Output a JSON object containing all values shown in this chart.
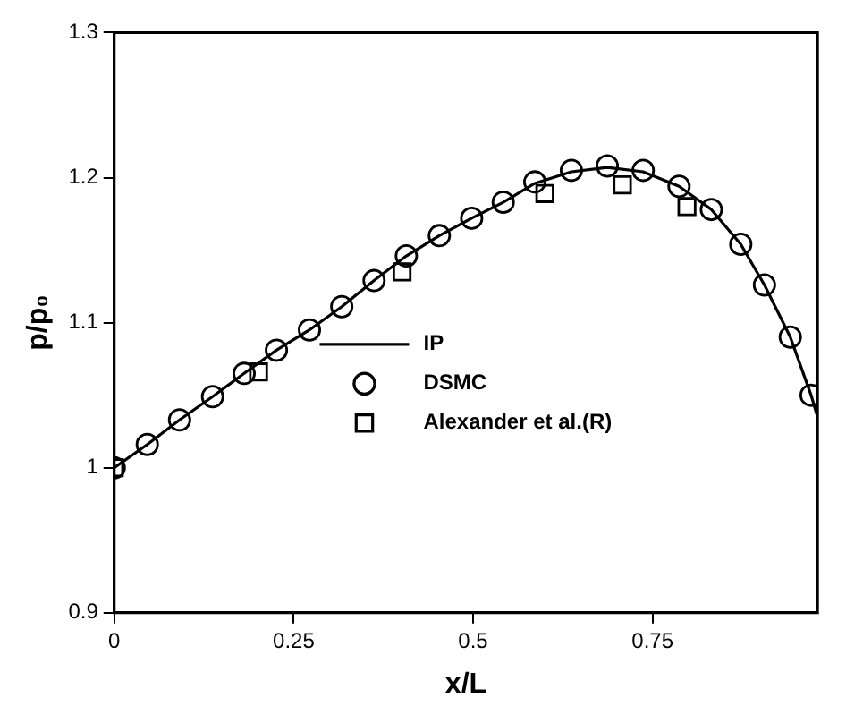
{
  "chart_data": {
    "type": "scatter",
    "xlabel": "x/L",
    "ylabel": "p/p₀",
    "xlim": [
      0,
      0.98
    ],
    "ylim": [
      0.9,
      1.3
    ],
    "xticks": [
      0,
      0.25,
      0.5,
      0.75
    ],
    "yticks": [
      0.9,
      1,
      1.1,
      1.2,
      1.3
    ],
    "grid": false,
    "legend": "bottom right",
    "series": [
      {
        "name": "IP",
        "type": "line",
        "color": "#000000",
        "marker": "none",
        "line_style": "solid",
        "x": [
          0,
          0.046,
          0.091,
          0.137,
          0.181,
          0.226,
          0.272,
          0.317,
          0.362,
          0.407,
          0.453,
          0.498,
          0.542,
          0.586,
          0.637,
          0.687,
          0.737,
          0.787,
          0.832,
          0.873,
          0.906,
          0.942,
          0.971,
          0.98
        ],
        "values": [
          1.0,
          1.016,
          1.033,
          1.049,
          1.065,
          1.081,
          1.095,
          1.111,
          1.129,
          1.146,
          1.16,
          1.172,
          1.183,
          1.196,
          1.204,
          1.207,
          1.204,
          1.194,
          1.178,
          1.154,
          1.126,
          1.09,
          1.05,
          1.035
        ]
      },
      {
        "name": "DSMC",
        "type": "scatter",
        "color": "#000000",
        "marker": "circle",
        "x": [
          0,
          0.046,
          0.091,
          0.137,
          0.181,
          0.226,
          0.272,
          0.317,
          0.362,
          0.407,
          0.453,
          0.498,
          0.542,
          0.586,
          0.637,
          0.687,
          0.737,
          0.787,
          0.832,
          0.873,
          0.906,
          0.942,
          0.971
        ],
        "values": [
          1.0,
          1.016,
          1.033,
          1.049,
          1.065,
          1.081,
          1.095,
          1.111,
          1.129,
          1.146,
          1.16,
          1.172,
          1.183,
          1.197,
          1.205,
          1.208,
          1.205,
          1.194,
          1.178,
          1.154,
          1.126,
          1.09,
          1.05
        ]
      },
      {
        "name": "Alexander et al.(R)",
        "type": "scatter",
        "color": "#000000",
        "marker": "square",
        "x": [
          0,
          0.201,
          0.401,
          0.6,
          0.708,
          0.798
        ],
        "values": [
          1.0,
          1.066,
          1.135,
          1.189,
          1.195,
          1.18
        ]
      }
    ]
  }
}
